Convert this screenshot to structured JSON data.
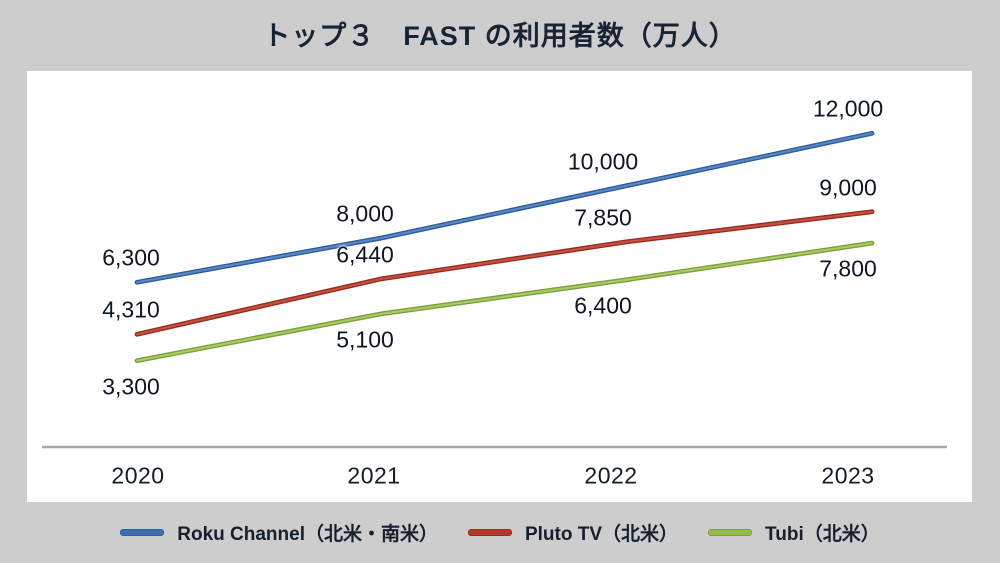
{
  "chart_data": {
    "type": "line",
    "title": "トップ３　FAST の利用者数（万人）",
    "categories": [
      "2020",
      "2021",
      "2022",
      "2023"
    ],
    "series": [
      {
        "name": "Roku Channel（北米・南米）",
        "key": "roku-channel",
        "color": "#3e6fb2",
        "color_dark": "#2d5d9d",
        "color_light": "#5c88c4",
        "values": [
          6300,
          8000,
          10000,
          12000
        ],
        "labels": [
          "6,300",
          "8,000",
          "10,000",
          "12,000"
        ],
        "label_position": "above"
      },
      {
        "name": "Pluto TV（北米）",
        "key": "pluto-tv",
        "color": "#b23a2b",
        "color_dark": "#992c20",
        "color_light": "#c75243",
        "values": [
          4310,
          6440,
          7850,
          9000
        ],
        "labels": [
          "4,310",
          "6,440",
          "7,850",
          "9,000"
        ],
        "label_position": "above"
      },
      {
        "name": "Tubi（北米）",
        "key": "tubi",
        "color": "#96ba4e",
        "color_dark": "#7ba13a",
        "color_light": "#abcb65",
        "values": [
          3300,
          5100,
          6400,
          7800
        ],
        "labels": [
          "3,300",
          "5,100",
          "6,400",
          "7,800"
        ],
        "label_position": "below"
      }
    ],
    "xlabel": "",
    "ylabel": "",
    "ylim": [
      0,
      14400
    ],
    "grid": false,
    "legend_position": "bottom"
  },
  "colors": {
    "background": "#cdcdcd",
    "plot_background": "#ffffff",
    "axis_line": "#a8a8a8",
    "title_text": "#182433",
    "label_text": "#0e1624"
  }
}
